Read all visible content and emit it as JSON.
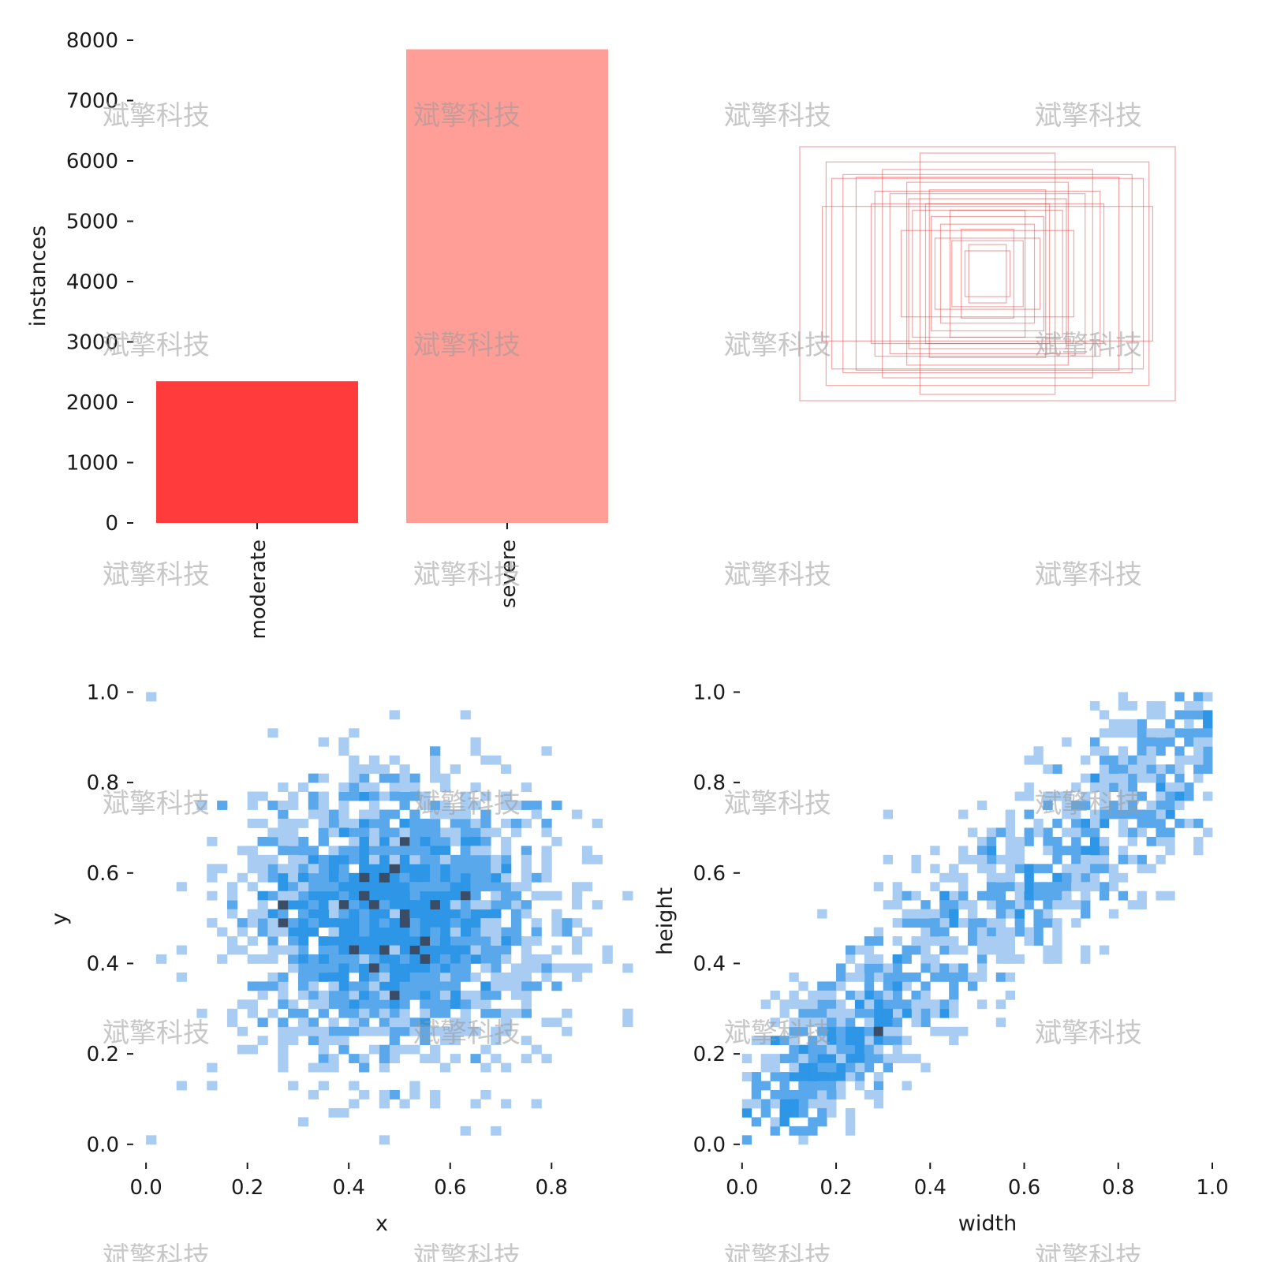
{
  "colors": {
    "moderate": "#ff3b3b",
    "severe": "#ff9e97",
    "box_stroke": "#e33c3c",
    "hist_low": "#a9ccf2",
    "hist_mid": "#2d96e6",
    "hist_high": "#3a4c66"
  },
  "watermark": "斌擎科技",
  "chart_data": [
    {
      "type": "bar",
      "ylabel": "instances",
      "categories": [
        "moderate",
        "severe"
      ],
      "values": [
        2350,
        7850
      ],
      "ylim": [
        0,
        8000
      ],
      "yticks": [
        "0",
        "1000",
        "2000",
        "3000",
        "4000",
        "5000",
        "6000",
        "7000",
        "8000"
      ],
      "grid": false
    },
    {
      "type": "boxes",
      "title": "",
      "boxes_wh": [
        [
          1.0,
          1.0
        ],
        [
          0.83,
          0.75
        ],
        [
          0.86,
          0.88
        ],
        [
          0.56,
          0.82
        ],
        [
          0.77,
          0.78
        ],
        [
          0.6,
          0.65
        ],
        [
          0.7,
          0.76
        ],
        [
          0.52,
          0.63
        ],
        [
          0.43,
          0.72
        ],
        [
          0.36,
          0.95
        ],
        [
          0.31,
          0.66
        ],
        [
          0.42,
          0.59
        ],
        [
          0.2,
          0.5
        ],
        [
          0.25,
          0.39
        ],
        [
          0.3,
          0.45
        ],
        [
          0.14,
          0.35
        ],
        [
          0.19,
          0.26
        ],
        [
          0.1,
          0.23
        ],
        [
          0.12,
          0.18
        ],
        [
          0.33,
          0.55
        ],
        [
          0.62,
          0.55
        ],
        [
          0.88,
          0.53
        ],
        [
          0.4,
          0.5
        ],
        [
          0.46,
          0.34
        ],
        [
          0.28,
          0.28
        ]
      ]
    },
    {
      "type": "heatmap",
      "xlabel": "x",
      "ylabel": "y",
      "xlim": [
        -0.05,
        0.91
      ],
      "ylim": [
        -0.03,
        1.02
      ],
      "xticks": [
        "0.0",
        "0.2",
        "0.4",
        "0.6",
        "0.8"
      ],
      "yticks": [
        "0.0",
        "0.2",
        "0.4",
        "0.6",
        "0.8",
        "1.0"
      ],
      "distribution": {
        "center": [
          0.49,
          0.5
        ],
        "spread": [
          0.15,
          0.15
        ],
        "samples": 2000
      },
      "outliers": [
        [
          0.01,
          0.99
        ],
        [
          0.01,
          0.01
        ]
      ]
    },
    {
      "type": "heatmap",
      "xlabel": "width",
      "ylabel": "height",
      "xlim": [
        -0.05,
        1.0
      ],
      "ylim": [
        -0.03,
        1.02
      ],
      "xticks": [
        "0.0",
        "0.2",
        "0.4",
        "0.6",
        "0.8",
        "1.0"
      ],
      "yticks": [
        "0.0",
        "0.2",
        "0.4",
        "0.6",
        "0.8",
        "1.0"
      ],
      "distribution": {
        "trend_slope": 0.85,
        "trend_intercept": 0.06,
        "spread": 0.11,
        "samples": 1100
      },
      "outliers": [
        [
          0.01,
          0.01
        ],
        [
          0.99,
          0.99
        ]
      ]
    }
  ]
}
